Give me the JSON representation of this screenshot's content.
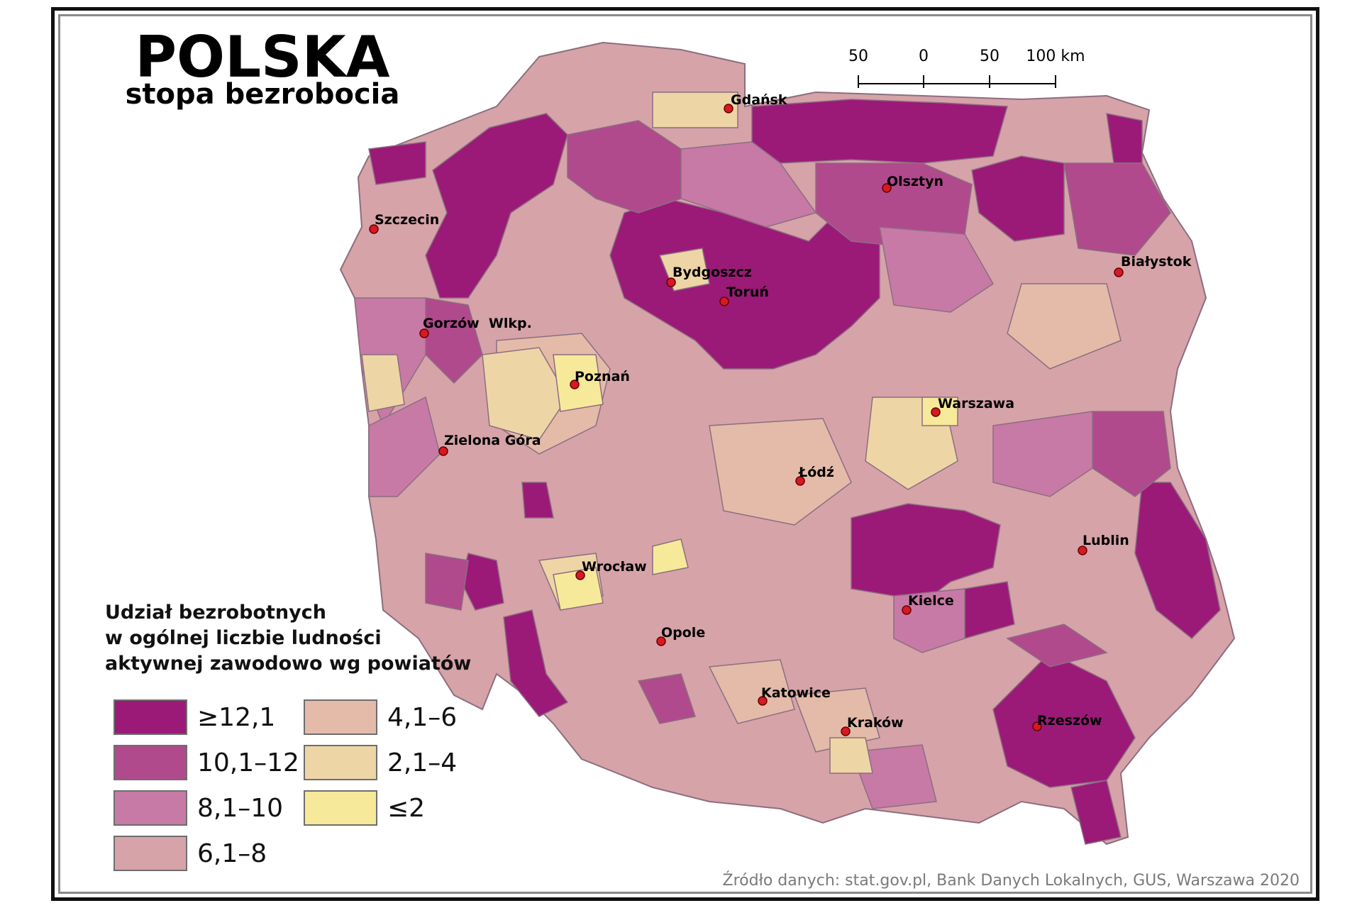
{
  "map": {
    "title": "POLSKA",
    "subtitle": "stopa bezrobocia",
    "scale_bar": {
      "labels": [
        "50",
        "0",
        "50",
        "100 km"
      ]
    },
    "legend": {
      "title_lines": [
        "Udział bezrobotnych",
        "w ogólnej liczbie ludności",
        "aktywnej zawodowo wg powiatów"
      ],
      "classes": [
        {
          "label": "≥12,1",
          "color": "#9b1a78"
        },
        {
          "label": "10,1–12",
          "color": "#b04a8c"
        },
        {
          "label": "8,1–10",
          "color": "#c77aa6"
        },
        {
          "label": "6,1–8",
          "color": "#d6a3a8"
        },
        {
          "label": "4,1–6",
          "color": "#e4bba8"
        },
        {
          "label": "2,1–4",
          "color": "#eed5a6"
        },
        {
          "label": "≤2",
          "color": "#f7e99a"
        }
      ]
    },
    "cities": [
      {
        "name": "Gdańsk"
      },
      {
        "name": "Olsztyn"
      },
      {
        "name": "Szczecin"
      },
      {
        "name": "Białystok"
      },
      {
        "name": "Bydgoszcz"
      },
      {
        "name": "Toruń"
      },
      {
        "name": "Gorzów  Wlkp."
      },
      {
        "name": "Poznań"
      },
      {
        "name": "Warszawa"
      },
      {
        "name": "Zielona Góra"
      },
      {
        "name": "Łódź"
      },
      {
        "name": "Lublin"
      },
      {
        "name": "Wrocław"
      },
      {
        "name": "Kielce"
      },
      {
        "name": "Opole"
      },
      {
        "name": "Katowice"
      },
      {
        "name": "Kraków"
      },
      {
        "name": "Rzeszów"
      }
    ],
    "source": "Źródło danych: stat.gov.pl, Bank Danych Lokalnych, GUS, Warszawa 2020"
  }
}
